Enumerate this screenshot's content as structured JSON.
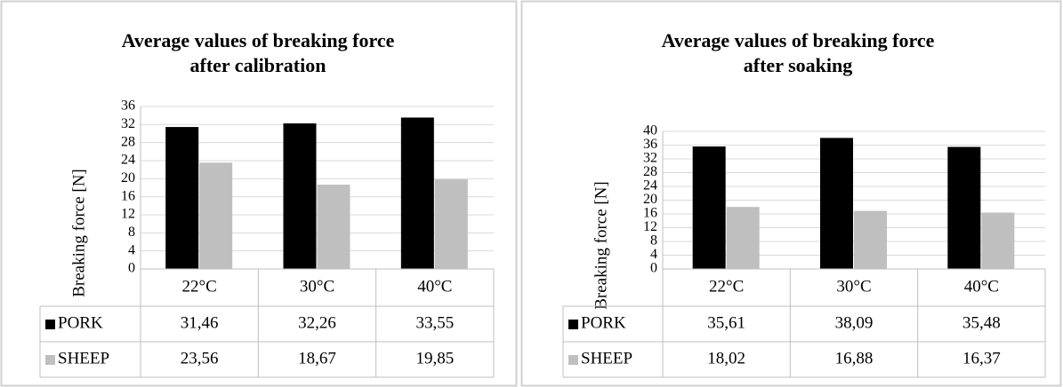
{
  "chart_data": [
    {
      "type": "bar",
      "title": [
        "Average values of breaking force",
        "after calibration"
      ],
      "y_label": "Breaking force [N]",
      "categories": [
        "22°C",
        "30°C",
        "40°C"
      ],
      "series": [
        {
          "name": "PORK",
          "color": "#000000",
          "values": [
            31.46,
            32.26,
            33.55
          ],
          "value_labels": [
            "31,46",
            "32,26",
            "33,55"
          ]
        },
        {
          "name": "SHEEP",
          "color": "#bfbfbf",
          "values": [
            23.56,
            18.67,
            19.85
          ],
          "value_labels": [
            "23,56",
            "18,67",
            "19,85"
          ]
        }
      ],
      "ylim": [
        0,
        36
      ],
      "yticks": [
        0,
        4,
        8,
        12,
        16,
        20,
        24,
        28,
        32,
        36
      ],
      "grid": true
    },
    {
      "type": "bar",
      "title": [
        "Average values of breaking force",
        "after soaking"
      ],
      "y_label": "Breaking force [N]",
      "categories": [
        "22°C",
        "30°C",
        "40°C"
      ],
      "series": [
        {
          "name": "PORK",
          "color": "#000000",
          "values": [
            35.61,
            38.09,
            35.48
          ],
          "value_labels": [
            "35,61",
            "38,09",
            "35,48"
          ]
        },
        {
          "name": "SHEEP",
          "color": "#bfbfbf",
          "values": [
            18.02,
            16.88,
            16.37
          ],
          "value_labels": [
            "18,02",
            "16,88",
            "16,37"
          ]
        }
      ],
      "ylim": [
        0,
        40
      ],
      "yticks": [
        0,
        4,
        8,
        12,
        16,
        20,
        24,
        28,
        32,
        36,
        40
      ],
      "grid": true
    }
  ]
}
